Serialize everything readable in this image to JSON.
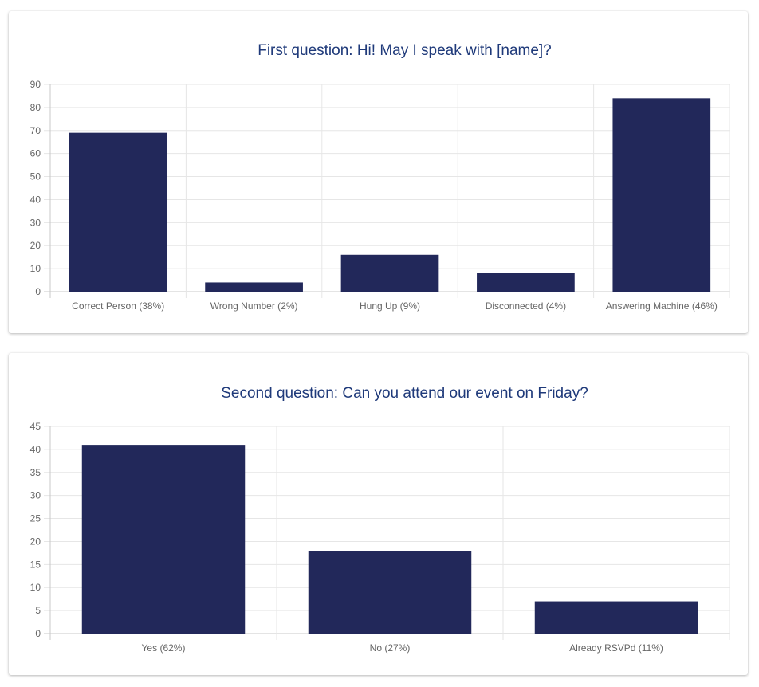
{
  "chart_data": [
    {
      "type": "bar",
      "title": "First question: Hi! May I speak with [name]?",
      "categories": [
        "Correct Person (38%)",
        "Wrong Number (2%)",
        "Hung Up (9%)",
        "Disconnected (4%)",
        "Answering Machine (46%)"
      ],
      "values": [
        69,
        4,
        16,
        8,
        84
      ],
      "ylim": [
        0,
        90
      ],
      "yticks": [
        0,
        10,
        20,
        30,
        40,
        50,
        60,
        70,
        80,
        90
      ],
      "grid": true,
      "bar_color": "#22285a"
    },
    {
      "type": "bar",
      "title": "Second question: Can you attend our event on Friday?",
      "categories": [
        "Yes (62%)",
        "No (27%)",
        "Already RSVPd (11%)"
      ],
      "values": [
        41,
        18,
        7
      ],
      "ylim": [
        0,
        45
      ],
      "yticks": [
        0,
        5,
        10,
        15,
        20,
        25,
        30,
        35,
        40,
        45
      ],
      "grid": true,
      "bar_color": "#22285a"
    }
  ]
}
